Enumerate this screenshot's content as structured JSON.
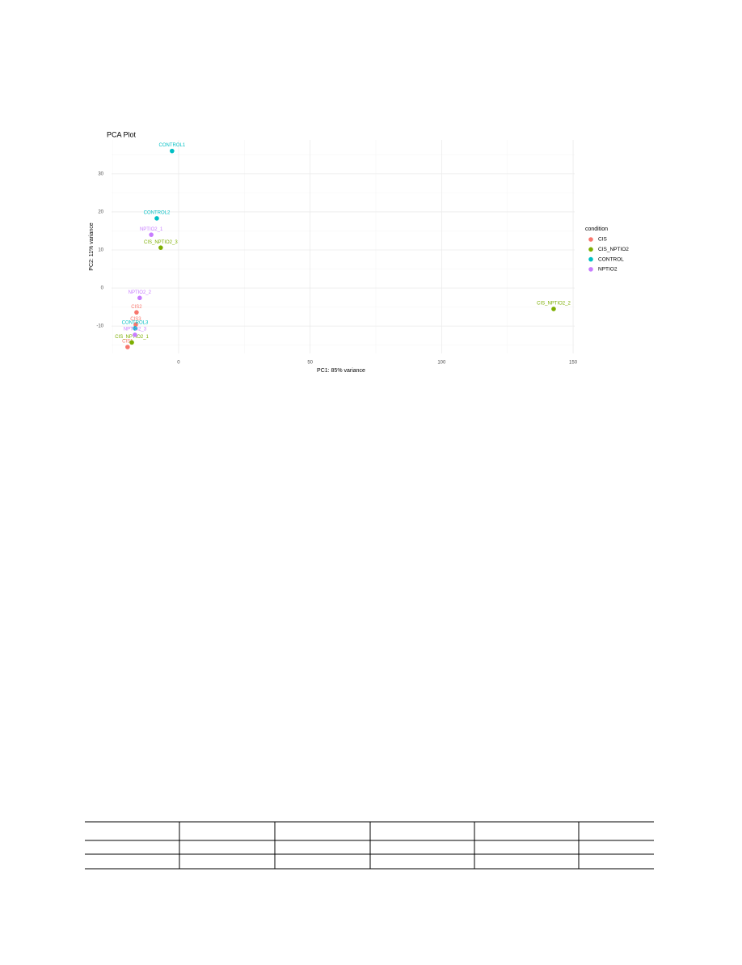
{
  "chart_data": {
    "type": "scatter",
    "title": "PCA Plot",
    "x_label": "PC1: 85% variance",
    "y_label": "PC2: 11% variance",
    "legend_title": "condition",
    "legend_position": "right",
    "xlim": [
      -25.5,
      150.6
    ],
    "ylim": [
      -17.2,
      38.9
    ],
    "xticks": [
      0,
      50,
      100,
      150
    ],
    "yticks": [
      -10,
      0,
      10,
      20,
      30
    ],
    "grid": true,
    "minor_grid": true,
    "series": [
      {
        "name": "CIS",
        "color": "#f8766d",
        "x": [
          -19.4,
          -16,
          -16.3
        ],
        "values": [
          -15.5,
          -6.4,
          -9.6
        ],
        "labels": [
          "CIS1",
          "CIS2",
          "CIS3"
        ]
      },
      {
        "name": "CIS_NPTIO2",
        "color": "#7cae00",
        "x": [
          -17.8,
          142.6,
          -6.8
        ],
        "values": [
          -14.3,
          -5.5,
          10.6
        ],
        "labels": [
          "CIS_NPTIO2_1",
          "CIS_NPTIO2_2",
          "CIS_NPTIO2_3"
        ]
      },
      {
        "name": "CONTROL",
        "color": "#00bfc4",
        "x": [
          -2.5,
          -8.3,
          -16.6
        ],
        "values": [
          36,
          18.3,
          -10.6
        ],
        "labels": [
          "CONTROL1",
          "CONTROL2",
          "CONTROL3"
        ]
      },
      {
        "name": "NPTIO2",
        "color": "#c77cff",
        "x": [
          -10.4,
          -14.8,
          -16.6
        ],
        "values": [
          14,
          -2.6,
          -12.3
        ],
        "labels": [
          "NPTIO2_1",
          "NPTIO2_2",
          "NPTIO2_3"
        ]
      }
    ]
  }
}
